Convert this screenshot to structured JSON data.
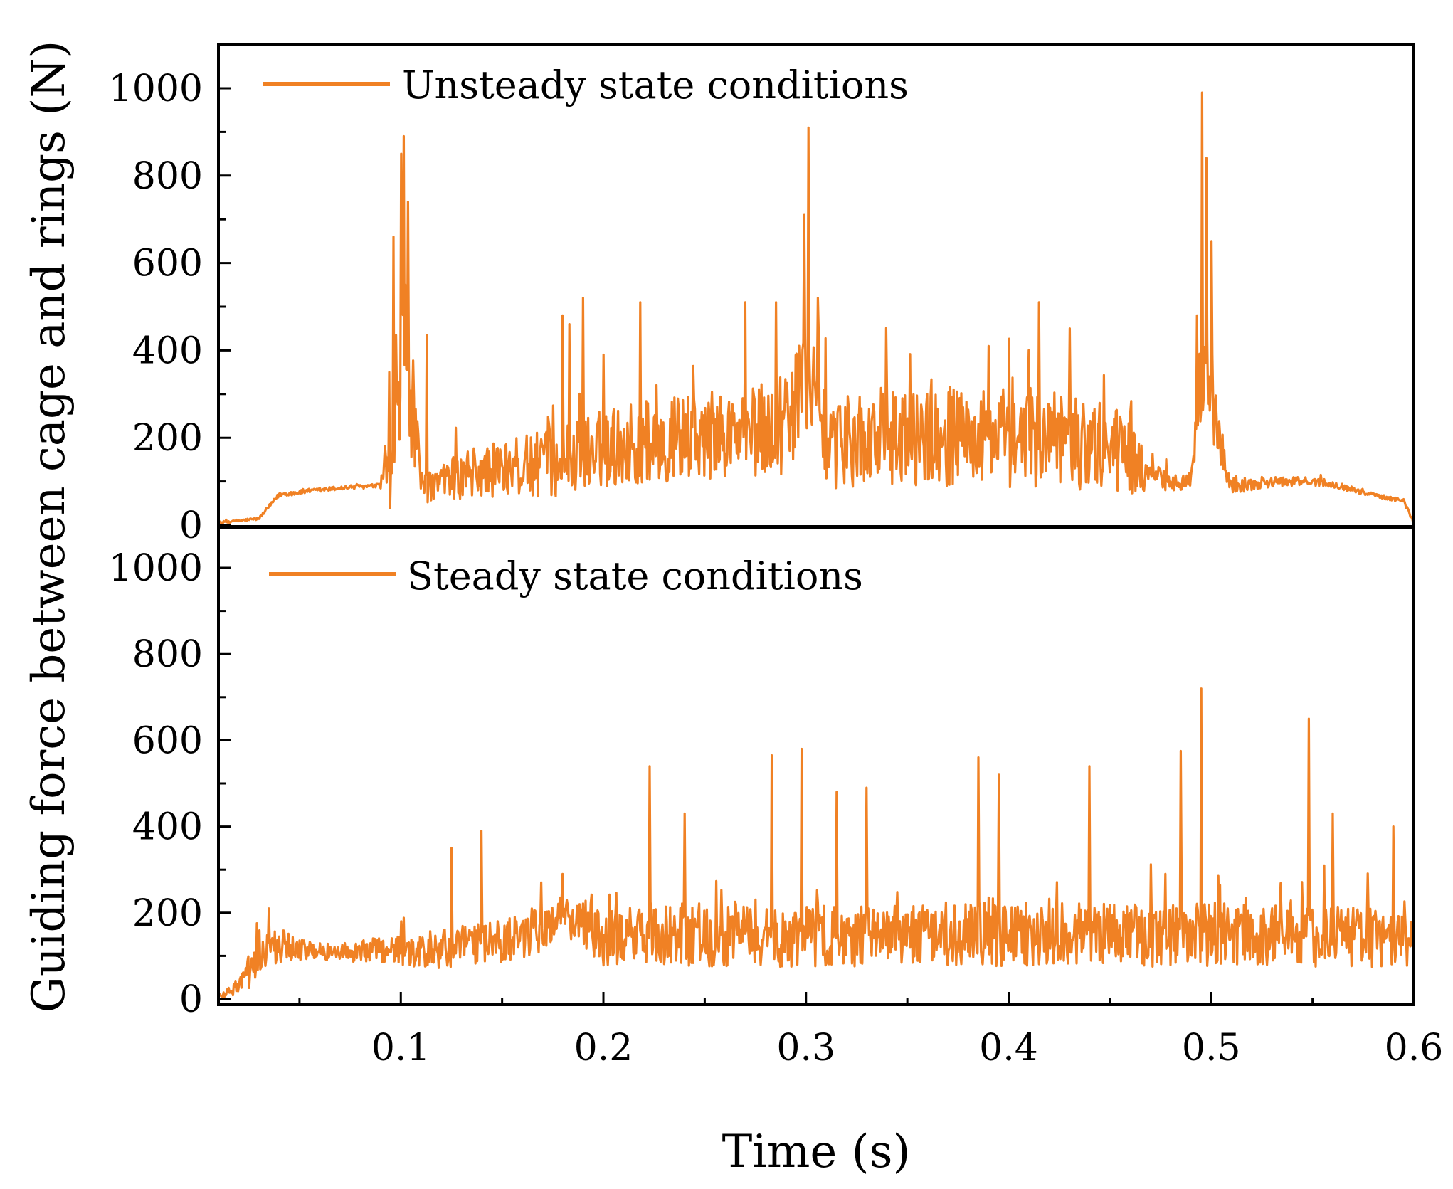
{
  "chart_data": [
    {
      "type": "line",
      "panel": "top",
      "ylabel": "Guiding force between cage and rings (N)",
      "xlabel": "Time (s)",
      "xlim": [
        0.01,
        0.6
      ],
      "ylim": [
        0,
        1100
      ],
      "yticks": [
        "0",
        "200",
        "400",
        "600",
        "800",
        "1000"
      ],
      "xticks": [
        "0.1",
        "0.2",
        "0.3",
        "0.4",
        "0.5",
        "0.6"
      ],
      "legend": "top-left",
      "color": "#f08124",
      "series": [
        {
          "name": "Unsteady state conditions",
          "envelope": {
            "x": [
              0.01,
              0.02,
              0.03,
              0.04,
              0.05,
              0.06,
              0.07,
              0.08,
              0.09,
              0.095,
              0.1,
              0.105,
              0.11,
              0.115,
              0.12,
              0.13,
              0.14,
              0.15,
              0.16,
              0.17,
              0.18,
              0.19,
              0.2,
              0.21,
              0.22,
              0.23,
              0.24,
              0.25,
              0.26,
              0.27,
              0.28,
              0.29,
              0.3,
              0.305,
              0.31,
              0.315,
              0.32,
              0.33,
              0.34,
              0.35,
              0.36,
              0.37,
              0.38,
              0.39,
              0.4,
              0.41,
              0.42,
              0.43,
              0.44,
              0.45,
              0.46,
              0.47,
              0.48,
              0.49,
              0.495,
              0.5,
              0.505,
              0.51,
              0.52,
              0.53,
              0.54,
              0.55,
              0.56,
              0.57,
              0.58,
              0.59,
              0.595,
              0.6
            ],
            "base": [
              5,
              10,
              15,
              70,
              75,
              80,
              85,
              88,
              90,
              180,
              330,
              300,
              90,
              85,
              95,
              110,
              120,
              130,
              135,
              140,
              145,
              165,
              175,
              185,
              190,
              195,
              200,
              205,
              205,
              210,
              215,
              225,
              330,
              290,
              200,
              175,
              185,
              195,
              200,
              200,
              205,
              205,
              200,
              200,
              200,
              195,
              195,
              190,
              185,
              180,
              150,
              110,
              105,
              100,
              340,
              300,
              170,
              90,
              95,
              100,
              100,
              100,
              95,
              80,
              70,
              60,
              55,
              5
            ],
            "amp": [
              3,
              3,
              3,
              5,
              5,
              5,
              5,
              5,
              5,
              150,
              200,
              150,
              30,
              40,
              50,
              55,
              60,
              65,
              70,
              75,
              80,
              85,
              90,
              95,
              95,
              100,
              100,
              100,
              100,
              105,
              105,
              110,
              120,
              110,
              100,
              95,
              100,
              105,
              110,
              110,
              115,
              115,
              110,
              115,
              115,
              110,
              110,
              110,
              105,
              100,
              90,
              30,
              25,
              20,
              110,
              100,
              50,
              20,
              15,
              12,
              10,
              10,
              8,
              6,
              5,
              5,
              5,
              3
            ]
          },
          "peaks": [
            {
              "x": 0.0965,
              "y": 660
            },
            {
              "x": 0.1003,
              "y": 850
            },
            {
              "x": 0.1015,
              "y": 890
            },
            {
              "x": 0.1035,
              "y": 740
            },
            {
              "x": 0.113,
              "y": 435
            },
            {
              "x": 0.18,
              "y": 480
            },
            {
              "x": 0.183,
              "y": 460
            },
            {
              "x": 0.19,
              "y": 520
            },
            {
              "x": 0.2,
              "y": 390
            },
            {
              "x": 0.218,
              "y": 510
            },
            {
              "x": 0.27,
              "y": 510
            },
            {
              "x": 0.285,
              "y": 510
            },
            {
              "x": 0.299,
              "y": 710
            },
            {
              "x": 0.301,
              "y": 910
            },
            {
              "x": 0.306,
              "y": 520
            },
            {
              "x": 0.39,
              "y": 410
            },
            {
              "x": 0.415,
              "y": 510
            },
            {
              "x": 0.43,
              "y": 450
            },
            {
              "x": 0.41,
              "y": 400
            },
            {
              "x": 0.46,
              "y": 260
            },
            {
              "x": 0.493,
              "y": 480
            },
            {
              "x": 0.4955,
              "y": 990
            },
            {
              "x": 0.4975,
              "y": 840
            },
            {
              "x": 0.5,
              "y": 650
            }
          ]
        }
      ]
    },
    {
      "type": "line",
      "panel": "bottom",
      "ylabel": "Guiding force between cage and rings (N)",
      "xlabel": "Time (s)",
      "xlim": [
        0.01,
        0.6
      ],
      "ylim": [
        0,
        1100
      ],
      "yticks": [
        "0",
        "200",
        "400",
        "600",
        "800",
        "1000"
      ],
      "xticks": [
        "0.1",
        "0.2",
        "0.3",
        "0.4",
        "0.5",
        "0.6"
      ],
      "legend": "top-left",
      "color": "#f08124",
      "series": [
        {
          "name": "Steady state conditions",
          "envelope": {
            "x": [
              0.01,
              0.02,
              0.025,
              0.03,
              0.04,
              0.05,
              0.06,
              0.07,
              0.08,
              0.09,
              0.1,
              0.11,
              0.12,
              0.13,
              0.14,
              0.15,
              0.16,
              0.17,
              0.18,
              0.19,
              0.2,
              0.22,
              0.24,
              0.26,
              0.28,
              0.3,
              0.32,
              0.34,
              0.36,
              0.38,
              0.4,
              0.42,
              0.44,
              0.46,
              0.48,
              0.5,
              0.52,
              0.54,
              0.56,
              0.58,
              0.6
            ],
            "base": [
              5,
              30,
              60,
              110,
              125,
              115,
              110,
              108,
              110,
              115,
              110,
              105,
              115,
              120,
              125,
              135,
              145,
              160,
              195,
              180,
              140,
              145,
              150,
              150,
              150,
              145,
              145,
              145,
              150,
              150,
              150,
              150,
              150,
              150,
              150,
              150,
              150,
              145,
              145,
              140,
              130
            ],
            "amp": [
              5,
              20,
              50,
              50,
              45,
              25,
              20,
              20,
              25,
              30,
              35,
              40,
              45,
              50,
              50,
              50,
              50,
              50,
              55,
              55,
              65,
              70,
              75,
              75,
              75,
              75,
              70,
              70,
              70,
              75,
              75,
              75,
              75,
              75,
              75,
              75,
              70,
              70,
              70,
              70,
              55
            ]
          },
          "peaks": [
            {
              "x": 0.035,
              "y": 210
            },
            {
              "x": 0.1,
              "y": 180
            },
            {
              "x": 0.125,
              "y": 350
            },
            {
              "x": 0.14,
              "y": 390
            },
            {
              "x": 0.18,
              "y": 290
            },
            {
              "x": 0.223,
              "y": 540
            },
            {
              "x": 0.24,
              "y": 430
            },
            {
              "x": 0.283,
              "y": 565
            },
            {
              "x": 0.298,
              "y": 580
            },
            {
              "x": 0.315,
              "y": 480
            },
            {
              "x": 0.33,
              "y": 490
            },
            {
              "x": 0.385,
              "y": 560
            },
            {
              "x": 0.395,
              "y": 520
            },
            {
              "x": 0.44,
              "y": 540
            },
            {
              "x": 0.485,
              "y": 575
            },
            {
              "x": 0.495,
              "y": 720
            },
            {
              "x": 0.548,
              "y": 650
            },
            {
              "x": 0.56,
              "y": 430
            },
            {
              "x": 0.59,
              "y": 400
            }
          ]
        }
      ]
    }
  ]
}
